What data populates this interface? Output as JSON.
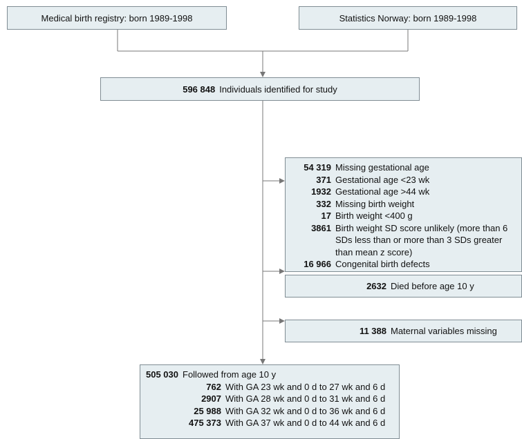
{
  "sources": [
    "Medical birth registry: born 1989-1998",
    "Statistics Norway: born 1989-1998"
  ],
  "study": {
    "count": "596 848",
    "label": "Individuals identified for study"
  },
  "exclusions": [
    {
      "items": [
        {
          "count": "54 319",
          "label": "Missing gestational age"
        },
        {
          "count": "371",
          "label": "Gestational age <23 wk"
        },
        {
          "count": "1932",
          "label": "Gestational age >44 wk"
        },
        {
          "count": "332",
          "label": "Missing birth weight"
        },
        {
          "count": "17",
          "label": "Birth weight <400 g"
        },
        {
          "count": "3861",
          "label": "Birth weight SD score unlikely (more than 6 SDs less than or more than 3 SDs greater than mean z score)"
        },
        {
          "count": "16 966",
          "label": "Congenital birth defects"
        }
      ]
    },
    {
      "items": [
        {
          "count": "2632",
          "label": "Died before age 10 y"
        }
      ]
    },
    {
      "items": [
        {
          "count": "11 388",
          "label": "Maternal variables missing"
        }
      ]
    }
  ],
  "followed": {
    "count": "505 030",
    "label": "Followed from age 10 y",
    "items": [
      {
        "count": "762",
        "label": "With GA 23 wk and 0 d to 27 wk and 6 d"
      },
      {
        "count": "2907",
        "label": "With GA 28 wk and 0 d to 31 wk and 6 d"
      },
      {
        "count": "25 988",
        "label": "With GA 32 wk and 0 d to 36 wk and 6 d"
      },
      {
        "count": "475 373",
        "label": "With GA 37 wk and 0 d to 44 wk and 6 d"
      }
    ]
  }
}
